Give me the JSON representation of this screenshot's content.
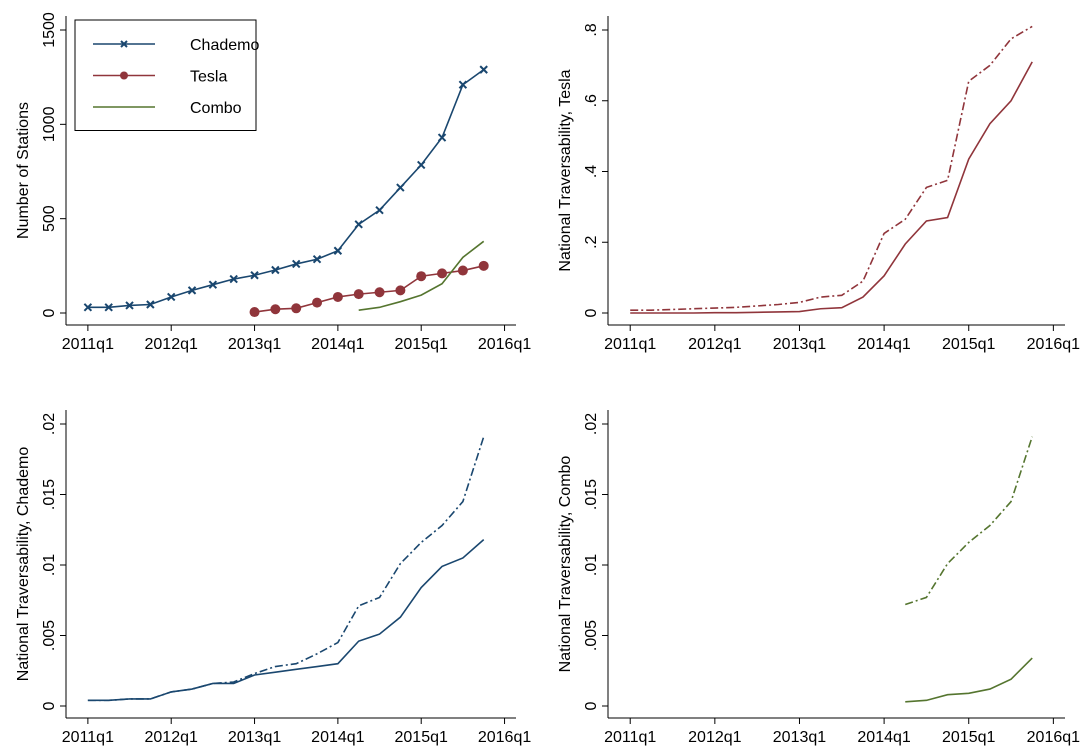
{
  "chart_data": [
    {
      "type": "line",
      "y_label": "Number of Stations",
      "x": [
        "2011q1",
        "2011q2",
        "2011q3",
        "2011q4",
        "2012q1",
        "2012q2",
        "2012q3",
        "2012q4",
        "2013q1",
        "2013q2",
        "2013q3",
        "2013q4",
        "2014q1",
        "2014q2",
        "2014q3",
        "2014q4",
        "2015q1",
        "2015q2",
        "2015q3",
        "2015q4"
      ],
      "series": [
        {
          "name": "Chademo",
          "color": "#1a476f",
          "marker": "x",
          "line_style": "solid",
          "values": [
            30,
            30,
            40,
            45,
            85,
            120,
            150,
            180,
            200,
            228,
            260,
            285,
            330,
            470,
            545,
            665,
            785,
            930,
            1210,
            1290
          ]
        },
        {
          "name": "Tesla",
          "color": "#90353b",
          "marker": "circle",
          "line_style": "solid",
          "values": [
            null,
            null,
            null,
            null,
            null,
            null,
            null,
            null,
            5,
            20,
            25,
            55,
            85,
            100,
            110,
            120,
            195,
            210,
            225,
            250
          ]
        },
        {
          "name": "Combo",
          "color": "#55752f",
          "marker": "none",
          "line_style": "solid",
          "values": [
            null,
            null,
            null,
            null,
            null,
            null,
            null,
            null,
            null,
            null,
            null,
            null,
            null,
            15,
            30,
            60,
            95,
            155,
            295,
            380
          ]
        }
      ],
      "ylim": [
        0,
        1500
      ],
      "yticks": [
        0,
        500,
        1000,
        1500
      ],
      "xticks": [
        "2011q1",
        "2012q1",
        "2013q1",
        "2014q1",
        "2015q1",
        "2016q1"
      ],
      "legend": "top-left"
    },
    {
      "type": "line",
      "y_label": "National Traversability, Tesla",
      "x": [
        "2011q1",
        "2011q2",
        "2011q3",
        "2011q4",
        "2012q1",
        "2012q2",
        "2012q3",
        "2012q4",
        "2013q1",
        "2013q2",
        "2013q3",
        "2013q4",
        "2014q1",
        "2014q2",
        "2014q3",
        "2014q4",
        "2015q1",
        "2015q2",
        "2015q3",
        "2015q4"
      ],
      "series": [
        {
          "color": "#90353b",
          "marker": "none",
          "line_style": "solid",
          "values": [
            0,
            0,
            0,
            0,
            0.001,
            0.001,
            0.002,
            0.003,
            0.004,
            0.012,
            0.015,
            0.045,
            0.105,
            0.195,
            0.26,
            0.27,
            0.435,
            0.535,
            0.6,
            0.71
          ]
        },
        {
          "color": "#90353b",
          "marker": "none",
          "line_style": "dashdot",
          "values": [
            0.008,
            0.008,
            0.01,
            0.012,
            0.014,
            0.016,
            0.02,
            0.024,
            0.03,
            0.045,
            0.05,
            0.09,
            0.225,
            0.265,
            0.355,
            0.375,
            0.655,
            0.7,
            0.775,
            0.81
          ]
        }
      ],
      "ylim": [
        0,
        0.8
      ],
      "yticks": [
        0,
        {
          "value": 0.2,
          "label": ".2"
        },
        {
          "value": 0.4,
          "label": ".4"
        },
        {
          "value": 0.6,
          "label": ".6"
        },
        {
          "value": 0.8,
          "label": ".8"
        }
      ],
      "xticks": [
        "2011q1",
        "2012q1",
        "2013q1",
        "2014q1",
        "2015q1",
        "2016q1"
      ]
    },
    {
      "type": "line",
      "y_label": "National Traversability, Chademo",
      "x": [
        "2011q1",
        "2011q2",
        "2011q3",
        "2011q4",
        "2012q1",
        "2012q2",
        "2012q3",
        "2012q4",
        "2013q1",
        "2013q2",
        "2013q3",
        "2013q4",
        "2014q1",
        "2014q2",
        "2014q3",
        "2014q4",
        "2015q1",
        "2015q2",
        "2015q3",
        "2015q4"
      ],
      "series": [
        {
          "color": "#1a476f",
          "marker": "none",
          "line_style": "solid",
          "values": [
            0.0004,
            0.0004,
            0.0005,
            0.0005,
            0.001,
            0.0012,
            0.0016,
            0.0016,
            0.0022,
            0.0024,
            0.0026,
            0.0028,
            0.003,
            0.0046,
            0.0051,
            0.0063,
            0.0084,
            0.0099,
            0.0105,
            0.0118
          ]
        },
        {
          "color": "#1a476f",
          "marker": "none",
          "line_style": "dashdot",
          "values": [
            0.0004,
            0.0004,
            0.0005,
            0.0005,
            0.001,
            0.0012,
            0.0016,
            0.0017,
            0.0023,
            0.0028,
            0.003,
            0.0037,
            0.0045,
            0.0071,
            0.0077,
            0.0101,
            0.0116,
            0.0128,
            0.0145,
            0.0191
          ]
        }
      ],
      "ylim": [
        0,
        0.02
      ],
      "yticks": [
        0,
        {
          "value": 0.005,
          "label": ".005"
        },
        {
          "value": 0.01,
          "label": ".01"
        },
        {
          "value": 0.015,
          "label": ".015"
        },
        {
          "value": 0.02,
          "label": ".02"
        }
      ],
      "xticks": [
        "2011q1",
        "2012q1",
        "2013q1",
        "2014q1",
        "2015q1",
        "2016q1"
      ]
    },
    {
      "type": "line",
      "y_label": "National Traversability, Combo",
      "x": [
        "2011q1",
        "2011q2",
        "2011q3",
        "2011q4",
        "2012q1",
        "2012q2",
        "2012q3",
        "2012q4",
        "2013q1",
        "2013q2",
        "2013q3",
        "2013q4",
        "2014q1",
        "2014q2",
        "2014q3",
        "2014q4",
        "2015q1",
        "2015q2",
        "2015q3",
        "2015q4"
      ],
      "series": [
        {
          "color": "#55752f",
          "marker": "none",
          "line_style": "solid",
          "values": [
            null,
            null,
            null,
            null,
            null,
            null,
            null,
            null,
            null,
            null,
            null,
            null,
            null,
            0.0003,
            0.0004,
            0.0008,
            0.0009,
            0.0012,
            0.0019,
            0.0034
          ]
        },
        {
          "color": "#55752f",
          "marker": "none",
          "line_style": "dashdot",
          "values": [
            null,
            null,
            null,
            null,
            null,
            null,
            null,
            null,
            null,
            null,
            null,
            null,
            null,
            0.0072,
            0.0077,
            0.0101,
            0.0116,
            0.0128,
            0.0145,
            0.0191
          ]
        }
      ],
      "ylim": [
        0,
        0.02
      ],
      "yticks": [
        0,
        {
          "value": 0.005,
          "label": ".005"
        },
        {
          "value": 0.01,
          "label": ".01"
        },
        {
          "value": 0.015,
          "label": ".015"
        },
        {
          "value": 0.02,
          "label": ".02"
        }
      ],
      "xticks": [
        "2011q1",
        "2012q1",
        "2013q1",
        "2014q1",
        "2015q1",
        "2016q1"
      ]
    }
  ]
}
